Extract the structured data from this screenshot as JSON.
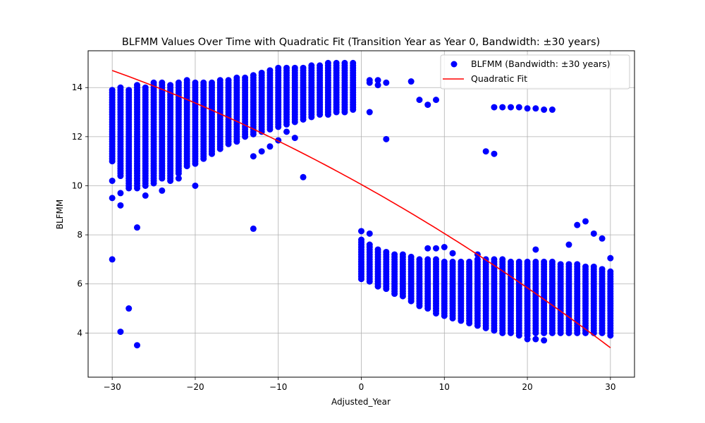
{
  "chart_data": {
    "type": "scatter",
    "title": "BLFMM Values Over Time with Quadratic Fit (Transition Year as Year 0, Bandwidth: ±30 years)",
    "xlabel": "Adjusted_Year",
    "ylabel": "BLFMM",
    "xlim": [
      -32.9,
      32.9
    ],
    "ylim": [
      2.2,
      15.5
    ],
    "xticks": [
      -30,
      -20,
      -10,
      0,
      10,
      20,
      30
    ],
    "yticks": [
      4,
      6,
      8,
      10,
      12,
      14
    ],
    "grid": true,
    "legend_position": "top-right",
    "series": [
      {
        "name": "BLFMM (Bandwidth: ±30 years)",
        "kind": "scatter",
        "color": "#0000ff",
        "band_note": "dense vertical columns at every integer year between min and max",
        "bands": [
          {
            "x": -30,
            "min": 11.0,
            "max": 13.9
          },
          {
            "x": -29,
            "min": 10.4,
            "max": 14.0
          },
          {
            "x": -28,
            "min": 9.9,
            "max": 13.9
          },
          {
            "x": -27,
            "min": 9.9,
            "max": 14.1
          },
          {
            "x": -26,
            "min": 10.0,
            "max": 14.0
          },
          {
            "x": -25,
            "min": 10.1,
            "max": 14.2
          },
          {
            "x": -24,
            "min": 10.3,
            "max": 14.2
          },
          {
            "x": -23,
            "min": 10.2,
            "max": 14.1
          },
          {
            "x": -22,
            "min": 10.5,
            "max": 14.2
          },
          {
            "x": -21,
            "min": 10.8,
            "max": 14.3
          },
          {
            "x": -20,
            "min": 10.9,
            "max": 14.2
          },
          {
            "x": -19,
            "min": 11.1,
            "max": 14.2
          },
          {
            "x": -18,
            "min": 11.3,
            "max": 14.2
          },
          {
            "x": -17,
            "min": 11.5,
            "max": 14.3
          },
          {
            "x": -16,
            "min": 11.7,
            "max": 14.3
          },
          {
            "x": -15,
            "min": 11.8,
            "max": 14.4
          },
          {
            "x": -14,
            "min": 12.0,
            "max": 14.4
          },
          {
            "x": -13,
            "min": 12.1,
            "max": 14.5
          },
          {
            "x": -12,
            "min": 12.2,
            "max": 14.6
          },
          {
            "x": -11,
            "min": 12.3,
            "max": 14.7
          },
          {
            "x": -10,
            "min": 12.4,
            "max": 14.8
          },
          {
            "x": -9,
            "min": 12.5,
            "max": 14.8
          },
          {
            "x": -8,
            "min": 12.6,
            "max": 14.8
          },
          {
            "x": -7,
            "min": 12.7,
            "max": 14.8
          },
          {
            "x": -6,
            "min": 12.8,
            "max": 14.9
          },
          {
            "x": -5,
            "min": 12.9,
            "max": 14.9
          },
          {
            "x": -4,
            "min": 12.9,
            "max": 15.0
          },
          {
            "x": -3,
            "min": 13.0,
            "max": 15.0
          },
          {
            "x": -2,
            "min": 13.0,
            "max": 15.0
          },
          {
            "x": -1,
            "min": 13.1,
            "max": 15.0
          },
          {
            "x": 0,
            "min": 6.2,
            "max": 7.8
          },
          {
            "x": 1,
            "min": 6.1,
            "max": 7.6
          },
          {
            "x": 2,
            "min": 5.9,
            "max": 7.4
          },
          {
            "x": 3,
            "min": 5.8,
            "max": 7.3
          },
          {
            "x": 4,
            "min": 5.6,
            "max": 7.2
          },
          {
            "x": 5,
            "min": 5.5,
            "max": 7.2
          },
          {
            "x": 6,
            "min": 5.3,
            "max": 7.1
          },
          {
            "x": 7,
            "min": 5.1,
            "max": 7.0
          },
          {
            "x": 8,
            "min": 5.0,
            "max": 7.0
          },
          {
            "x": 9,
            "min": 4.8,
            "max": 7.0
          },
          {
            "x": 10,
            "min": 4.7,
            "max": 6.9
          },
          {
            "x": 11,
            "min": 4.6,
            "max": 6.9
          },
          {
            "x": 12,
            "min": 4.5,
            "max": 6.9
          },
          {
            "x": 13,
            "min": 4.4,
            "max": 6.9
          },
          {
            "x": 14,
            "min": 4.3,
            "max": 7.0
          },
          {
            "x": 15,
            "min": 4.2,
            "max": 7.0
          },
          {
            "x": 16,
            "min": 4.1,
            "max": 7.0
          },
          {
            "x": 17,
            "min": 4.0,
            "max": 7.0
          },
          {
            "x": 18,
            "min": 4.0,
            "max": 6.9
          },
          {
            "x": 19,
            "min": 3.9,
            "max": 6.9
          },
          {
            "x": 20,
            "min": 3.9,
            "max": 6.9
          },
          {
            "x": 21,
            "min": 4.0,
            "max": 6.9
          },
          {
            "x": 22,
            "min": 4.0,
            "max": 6.9
          },
          {
            "x": 23,
            "min": 4.0,
            "max": 6.9
          },
          {
            "x": 24,
            "min": 4.0,
            "max": 6.8
          },
          {
            "x": 25,
            "min": 4.0,
            "max": 6.8
          },
          {
            "x": 26,
            "min": 4.0,
            "max": 6.8
          },
          {
            "x": 27,
            "min": 4.0,
            "max": 6.7
          },
          {
            "x": 28,
            "min": 4.0,
            "max": 6.7
          },
          {
            "x": 29,
            "min": 4.0,
            "max": 6.6
          },
          {
            "x": 30,
            "min": 3.9,
            "max": 6.5
          }
        ],
        "points": [
          [
            -30,
            7.0
          ],
          [
            -30,
            9.5
          ],
          [
            -30,
            10.2
          ],
          [
            -29,
            9.2
          ],
          [
            -29,
            4.05
          ],
          [
            -29,
            9.7
          ],
          [
            -28,
            5.0
          ],
          [
            -27,
            8.3
          ],
          [
            -27,
            3.5
          ],
          [
            -26,
            9.6
          ],
          [
            -24,
            9.8
          ],
          [
            -22,
            10.3
          ],
          [
            -20,
            10.0
          ],
          [
            -13,
            8.25
          ],
          [
            -13,
            11.2
          ],
          [
            -12,
            11.4
          ],
          [
            -11,
            11.6
          ],
          [
            -10,
            11.85
          ],
          [
            -9,
            12.2
          ],
          [
            -8,
            11.95
          ],
          [
            -7,
            10.35
          ],
          [
            0,
            8.15
          ],
          [
            1,
            8.05
          ],
          [
            1,
            13.0
          ],
          [
            1,
            14.2
          ],
          [
            1,
            14.3
          ],
          [
            2,
            14.1
          ],
          [
            2,
            14.3
          ],
          [
            3,
            14.2
          ],
          [
            3,
            11.9
          ],
          [
            6,
            14.25
          ],
          [
            7,
            13.5
          ],
          [
            8,
            13.3
          ],
          [
            9,
            13.5
          ],
          [
            8,
            7.45
          ],
          [
            9,
            7.45
          ],
          [
            10,
            7.5
          ],
          [
            11,
            7.25
          ],
          [
            14,
            7.2
          ],
          [
            15,
            11.4
          ],
          [
            16,
            11.3
          ],
          [
            16,
            13.2
          ],
          [
            17,
            13.2
          ],
          [
            18,
            13.2
          ],
          [
            19,
            13.2
          ],
          [
            20,
            13.15
          ],
          [
            21,
            13.15
          ],
          [
            22,
            13.1
          ],
          [
            23,
            13.1
          ],
          [
            20,
            3.75
          ],
          [
            21,
            3.75
          ],
          [
            22,
            3.7
          ],
          [
            21,
            7.4
          ],
          [
            25,
            7.6
          ],
          [
            26,
            8.4
          ],
          [
            27,
            8.55
          ],
          [
            28,
            8.05
          ],
          [
            29,
            7.85
          ],
          [
            30,
            7.05
          ]
        ]
      },
      {
        "name": "Quadratic Fit",
        "kind": "line",
        "color": "#ff0000",
        "coefficients": {
          "a": -0.001113,
          "b": -0.1883,
          "c": 10.05
        },
        "x_range": [
          -30,
          30
        ]
      }
    ]
  }
}
